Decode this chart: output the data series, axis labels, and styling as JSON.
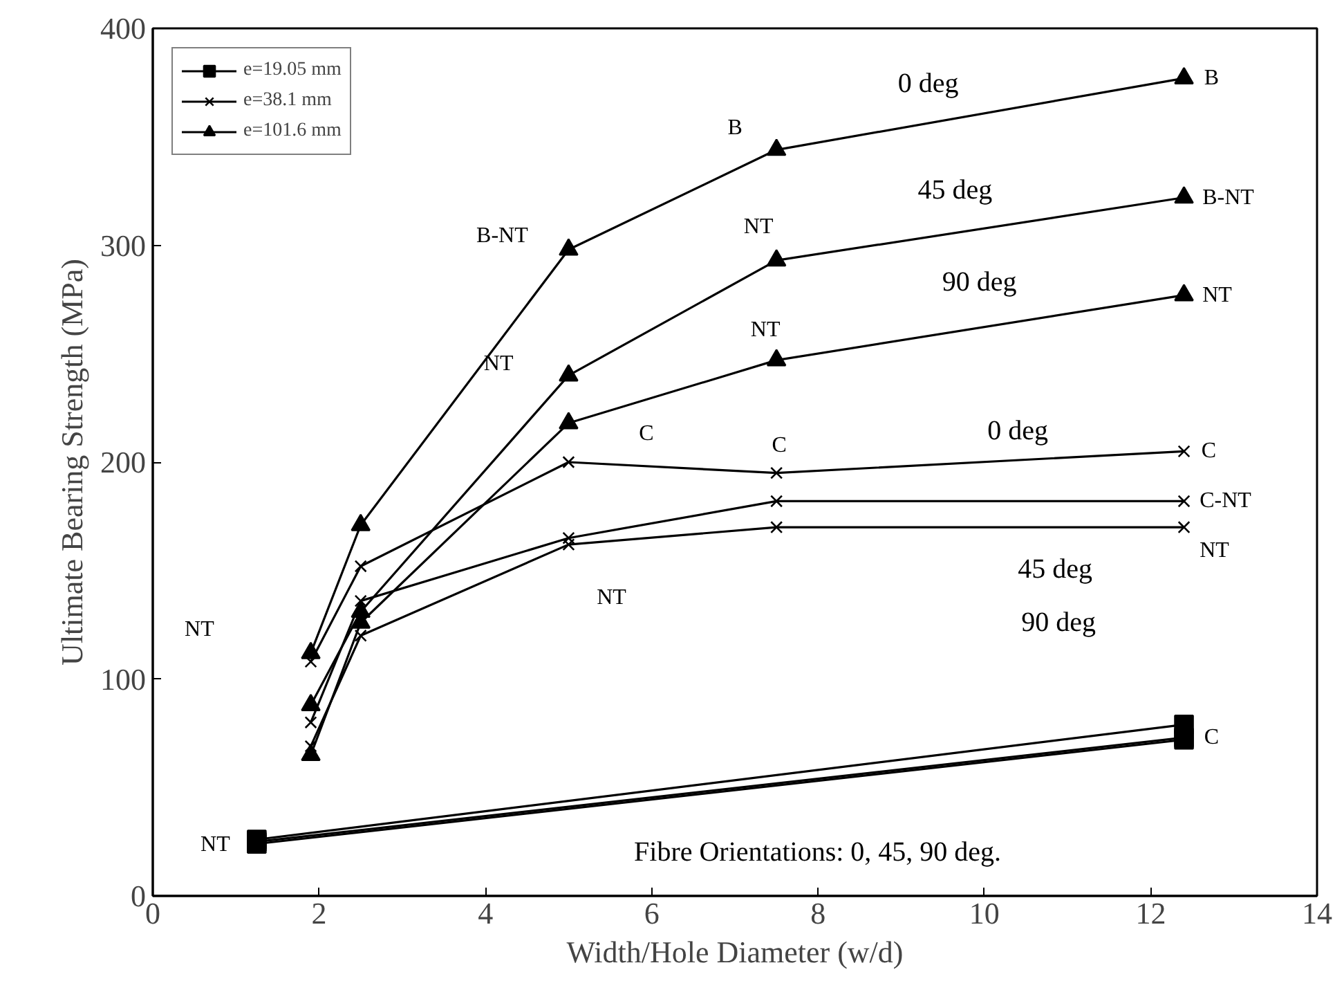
{
  "chart_data": {
    "type": "line",
    "xlabel": "Width/Hole Diameter (w/d)",
    "ylabel": "Ultimate Bearing Strength (MPa)",
    "xlim": [
      0,
      14
    ],
    "xticks": [
      0,
      2,
      4,
      6,
      8,
      10,
      12,
      14
    ],
    "ylim": [
      0,
      400
    ],
    "yticks": [
      0,
      100,
      200,
      300,
      400
    ],
    "grid": false,
    "legend": "top left",
    "series": [
      {
        "name": "e=19.05 mm",
        "color": "#000000",
        "marker": "square",
        "x": [
          1.25,
          12.4
        ],
        "values": [
          26,
          79
        ]
      },
      {
        "color": "#000000",
        "marker": "square",
        "x": [
          1.25,
          12.4
        ],
        "values": [
          25,
          73
        ]
      },
      {
        "color": "#000000",
        "marker": "square",
        "x": [
          1.25,
          12.4
        ],
        "values": [
          24,
          72
        ]
      },
      {
        "name": "e=38.1 mm",
        "color": "#000000",
        "marker": "cross",
        "x": [
          1.9,
          2.5,
          5,
          7.5,
          12.4
        ],
        "values": [
          108,
          152,
          200,
          195,
          205
        ]
      },
      {
        "color": "#000000",
        "marker": "cross",
        "x": [
          1.9,
          2.5,
          5,
          7.5,
          12.4
        ],
        "values": [
          80,
          136,
          165,
          182,
          182
        ]
      },
      {
        "color": "#000000",
        "marker": "cross",
        "x": [
          1.9,
          2.5,
          5,
          7.5,
          12.4
        ],
        "values": [
          69,
          120,
          162,
          170,
          170
        ]
      },
      {
        "name": "e=101.6 mm",
        "color": "#000000",
        "marker": "triangle",
        "x": [
          1.9,
          2.5,
          5,
          7.5,
          12.4
        ],
        "values": [
          112,
          171,
          298,
          344,
          377
        ]
      },
      {
        "color": "#000000",
        "marker": "triangle",
        "x": [
          1.9,
          2.5,
          5,
          7.5,
          12.4
        ],
        "values": [
          88,
          131,
          240,
          293,
          322
        ]
      },
      {
        "color": "#000000",
        "marker": "triangle",
        "x": [
          1.9,
          2.5,
          5,
          7.5,
          12.4
        ],
        "values": [
          65,
          126,
          218,
          247,
          277
        ]
      }
    ],
    "annotations": [
      "0 deg",
      "45 deg",
      "90 deg",
      {
        "text": "B",
        "x": 7.5,
        "y": 344
      },
      {
        "text": "B",
        "x": 12.4,
        "y": 377
      },
      {
        "text": "B-NT",
        "x": 5,
        "y": 298
      },
      {
        "text": "NT",
        "x": 7.5,
        "y": 293
      },
      {
        "text": "NT",
        "x": 7.5,
        "y": 247
      },
      {
        "text": "B-NT",
        "x": 12.4,
        "y": 322
      },
      {
        "text": "NT",
        "x": 12.4,
        "y": 277
      },
      "NT",
      "C",
      {
        "text": "C",
        "x": 7.5,
        "y": 195
      },
      "0 deg",
      {
        "text": "C",
        "x": 12.4,
        "y": 205
      },
      {
        "text": "C-NT",
        "x": 12.4,
        "y": 182
      },
      {
        "text": "NT",
        "x": 12.4,
        "y": 170
      },
      "45 deg",
      "90 deg",
      "NT",
      "NT",
      {
        "text": "NT",
        "x": 1.25,
        "y": 25
      },
      {
        "text": "C",
        "x": 12.4,
        "y": 73
      },
      "Fibre Orientations: 0, 45, 90 deg."
    ]
  }
}
